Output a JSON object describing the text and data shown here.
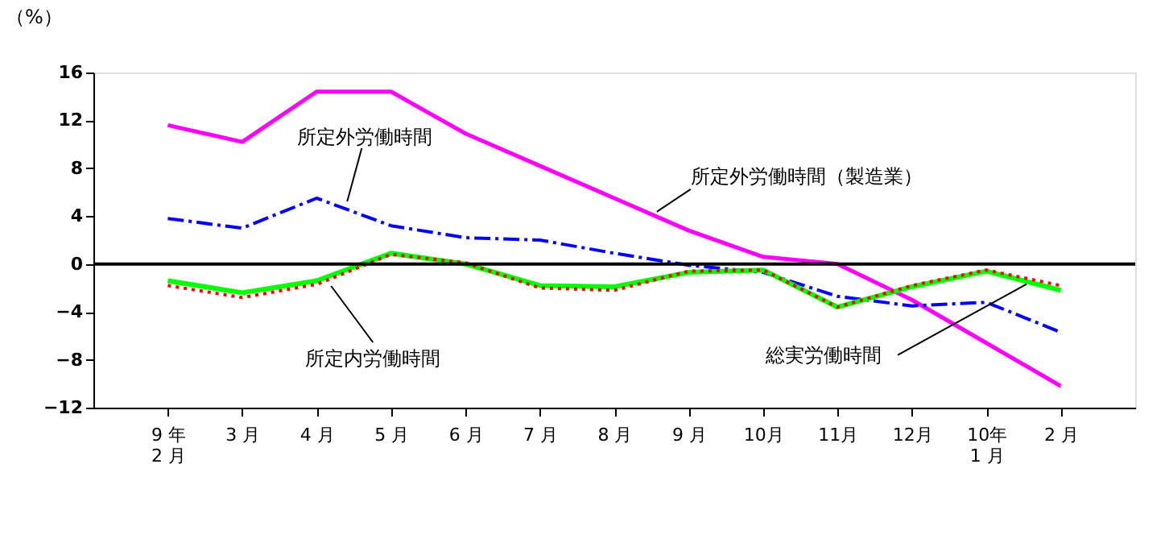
{
  "chart_data": {
    "type": "line",
    "ylabel": "（%）",
    "categories": [
      "9 年\n2 月",
      "3 月",
      "4 月",
      "5 月",
      "6 月",
      "7 月",
      "8 月",
      "9 月",
      "10月",
      "11月",
      "12月",
      "10年\n1 月",
      "2 月"
    ],
    "series": [
      {
        "name": "所定外労働時間（製造業）",
        "color": "#ff00ff",
        "line_style": "solid",
        "values": [
          11.6,
          10.2,
          14.4,
          14.4,
          10.9,
          8.2,
          5.5,
          2.8,
          0.6,
          0.0,
          -3.0,
          -6.6,
          -10.2
        ]
      },
      {
        "name": "所定外労働時間",
        "color": "#0000ff",
        "line_style": "dashed",
        "values": [
          3.8,
          3.0,
          5.5,
          3.2,
          2.2,
          2.0,
          0.9,
          -0.1,
          -0.7,
          -2.7,
          -3.5,
          -3.2,
          -5.7
        ]
      },
      {
        "name": "総実労働時間",
        "color": "#00ff00",
        "line_style": "solid",
        "values": [
          -1.4,
          -2.4,
          -1.4,
          0.9,
          0.0,
          -1.8,
          -1.9,
          -0.7,
          -0.5,
          -3.6,
          -1.9,
          -0.6,
          -2.2
        ]
      },
      {
        "name": "所定内労働時間",
        "color": "#ff0000",
        "line_style": "dotted",
        "values": [
          -1.8,
          -2.8,
          -1.7,
          0.8,
          0.1,
          -2.0,
          -2.2,
          -0.6,
          -0.5,
          -3.6,
          -1.8,
          -0.5,
          -1.8
        ]
      }
    ],
    "ylim": [
      -12,
      16
    ],
    "yticks": [
      -12,
      -8,
      -4,
      0,
      4,
      8,
      12,
      16
    ],
    "ref_lines": [
      {
        "axis": "y",
        "value": 0,
        "color": "#000000"
      }
    ],
    "grid": false,
    "legend": false,
    "marker": "none"
  }
}
